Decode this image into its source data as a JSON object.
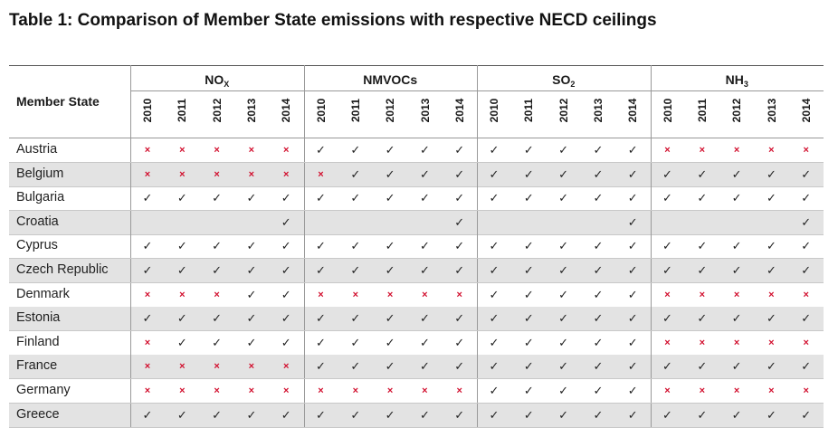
{
  "title": "Table 1: Comparison of Member State emissions with respective NECD ceilings",
  "table": {
    "row_header": "Member State",
    "groups": [
      {
        "base": "NO",
        "sub": "X"
      },
      {
        "base": "NMVOCs",
        "sub": ""
      },
      {
        "base": "SO",
        "sub": "2"
      },
      {
        "base": "NH",
        "sub": "3"
      }
    ],
    "years": [
      "2010",
      "2011",
      "2012",
      "2013",
      "2014"
    ],
    "symbols": {
      "y": "✓",
      "n": "×",
      "empty": ""
    },
    "rows": [
      {
        "country": "Austria",
        "cells": [
          "nnnnn",
          "yyyyy",
          "yyyyy",
          "nnnnn"
        ]
      },
      {
        "country": "Belgium",
        "cells": [
          "nnnnn",
          "nyyyy",
          "yyyyy",
          "yyyyy"
        ]
      },
      {
        "country": "Bulgaria",
        "cells": [
          "yyyyy",
          "yyyyy",
          "yyyyy",
          "yyyyy"
        ]
      },
      {
        "country": "Croatia",
        "cells": [
          "----y",
          "----y",
          "----y",
          "----y"
        ]
      },
      {
        "country": "Cyprus",
        "cells": [
          "yyyyy",
          "yyyyy",
          "yyyyy",
          "yyyyy"
        ]
      },
      {
        "country": "Czech Republic",
        "cells": [
          "yyyyy",
          "yyyyy",
          "yyyyy",
          "yyyyy"
        ]
      },
      {
        "country": "Denmark",
        "cells": [
          "nnnyy",
          "nnnnn",
          "yyyyy",
          "nnnnn"
        ]
      },
      {
        "country": "Estonia",
        "cells": [
          "yyyyy",
          "yyyyy",
          "yyyyy",
          "yyyyy"
        ]
      },
      {
        "country": "Finland",
        "cells": [
          "nyyyy",
          "yyyyy",
          "yyyyy",
          "nnnnn"
        ]
      },
      {
        "country": "France",
        "cells": [
          "nnnnn",
          "yyyyy",
          "yyyyy",
          "yyyyy"
        ]
      },
      {
        "country": "Germany",
        "cells": [
          "nnnnn",
          "nnnnn",
          "yyyyy",
          "nnnnn"
        ]
      },
      {
        "country": "Greece",
        "cells": [
          "yyyyy",
          "yyyyy",
          "yyyyy",
          "yyyyy"
        ]
      }
    ]
  }
}
